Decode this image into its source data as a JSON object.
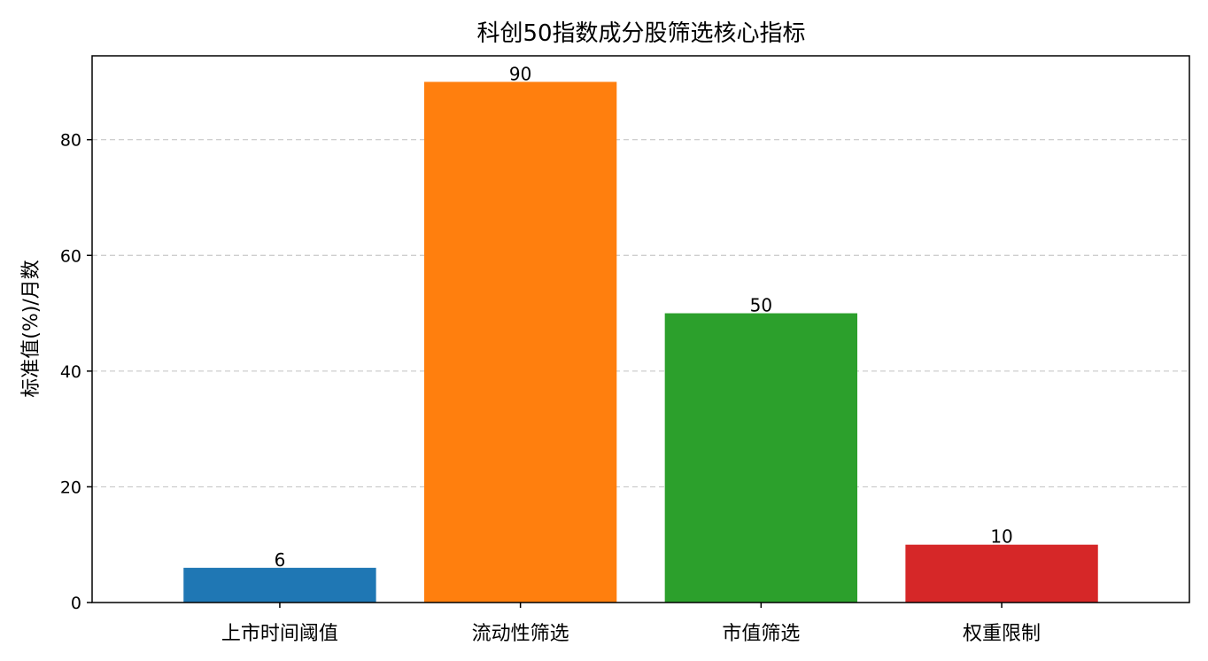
{
  "chart_data": {
    "type": "bar",
    "title": "科创50指数成分股筛选核心指标",
    "xlabel": "",
    "ylabel": "标准值(%)/月数",
    "categories": [
      "上市时间阈值",
      "流动性筛选",
      "市值筛选",
      "权重限制"
    ],
    "values": [
      6,
      90,
      50,
      10
    ],
    "data_labels": [
      "6",
      "90",
      "50",
      "10"
    ],
    "colors": [
      "#1f77b4",
      "#ff7f0e",
      "#2ca02c",
      "#d62728"
    ],
    "ylim": [
      0,
      94.5
    ],
    "yticks": [
      0,
      20,
      40,
      60,
      80
    ],
    "grid": "y-dashed",
    "legend": "none"
  }
}
